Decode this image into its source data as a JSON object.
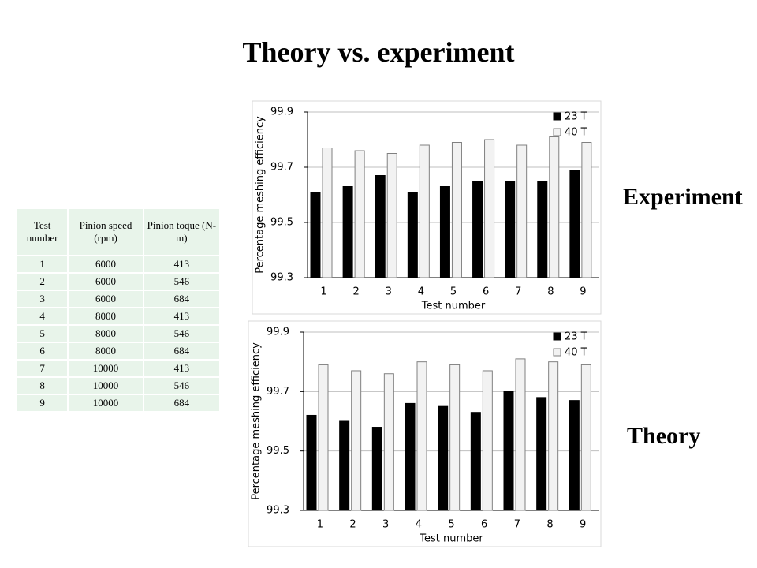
{
  "title": "Theory vs. experiment",
  "table": {
    "header": [
      "Test number",
      "Pinion speed (rpm)",
      "Pinion toque (N-m)"
    ],
    "rows": [
      [
        1,
        6000,
        413
      ],
      [
        2,
        6000,
        546
      ],
      [
        3,
        6000,
        684
      ],
      [
        4,
        8000,
        413
      ],
      [
        5,
        8000,
        546
      ],
      [
        6,
        8000,
        684
      ],
      [
        7,
        10000,
        413
      ],
      [
        8,
        10000,
        546
      ],
      [
        9,
        10000,
        684
      ]
    ]
  },
  "chart_data": [
    {
      "type": "bar",
      "title": "Experiment",
      "x_label": "Test number",
      "y_label": "Percentage meshing efficiency",
      "categories": [
        "1",
        "2",
        "3",
        "4",
        "5",
        "6",
        "7",
        "8",
        "9"
      ],
      "series": [
        {
          "name": "23 T",
          "color": "#000000",
          "values": [
            99.61,
            99.63,
            99.67,
            99.61,
            99.63,
            99.65,
            99.65,
            99.65,
            99.69
          ]
        },
        {
          "name": "40 T",
          "color": "#f2f2f2",
          "values": [
            99.77,
            99.76,
            99.75,
            99.78,
            99.79,
            99.8,
            99.78,
            99.81,
            99.79
          ]
        }
      ],
      "ylim": [
        99.3,
        99.9
      ],
      "yticks": [
        99.3,
        99.5,
        99.7,
        99.9
      ],
      "grid": true,
      "legend": "upper right"
    },
    {
      "type": "bar",
      "title": "Theory",
      "x_label": "Test number",
      "y_label": "Percentage meshing efficiency",
      "categories": [
        "1",
        "2",
        "3",
        "4",
        "5",
        "6",
        "7",
        "8",
        "9"
      ],
      "series": [
        {
          "name": "23 T",
          "color": "#000000",
          "values": [
            99.62,
            99.6,
            99.58,
            99.66,
            99.65,
            99.63,
            99.7,
            99.68,
            99.67
          ]
        },
        {
          "name": "40 T",
          "color": "#f2f2f2",
          "values": [
            99.79,
            99.77,
            99.76,
            99.8,
            99.79,
            99.77,
            99.81,
            99.8,
            99.79
          ]
        }
      ],
      "ylim": [
        99.3,
        99.9
      ],
      "yticks": [
        99.3,
        99.5,
        99.7,
        99.9
      ],
      "grid": true,
      "legend": "upper right"
    }
  ]
}
